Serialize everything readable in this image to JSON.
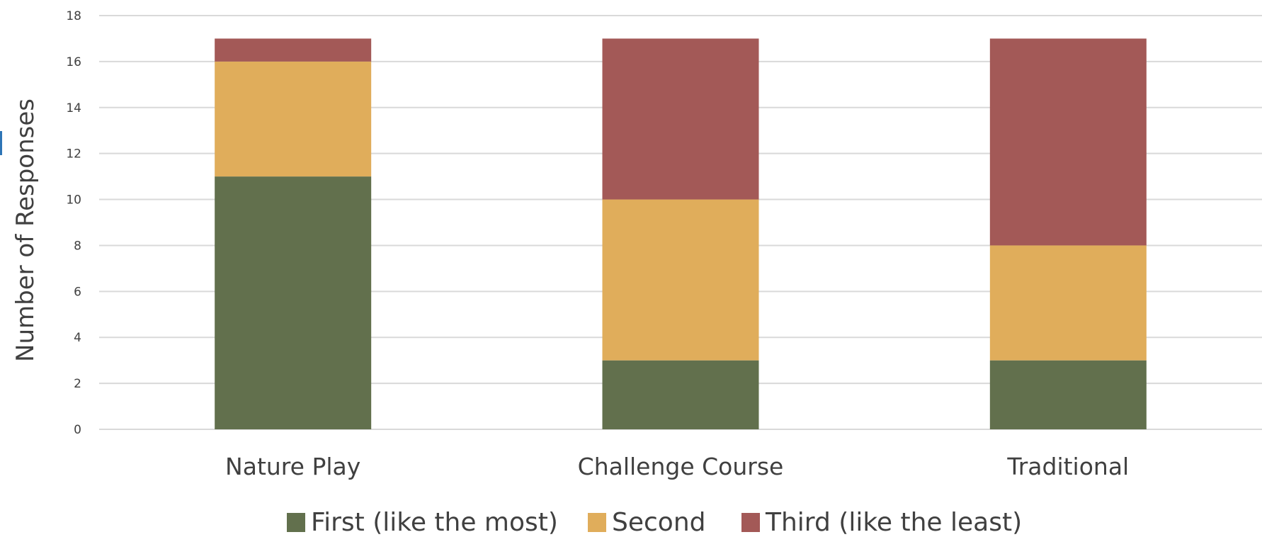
{
  "chart_data": {
    "type": "bar",
    "stacked": true,
    "title": "",
    "xlabel": "",
    "ylabel": "Number of Responses",
    "ylim": [
      0,
      18
    ],
    "yticks": [
      0,
      2,
      4,
      6,
      8,
      10,
      12,
      14,
      16,
      18
    ],
    "grid": true,
    "legend_position": "bottom",
    "categories": [
      "Nature Play",
      "Challenge Course",
      "Traditional"
    ],
    "series": [
      {
        "name": "First (like the most)",
        "color": "#62704d",
        "values": [
          11,
          3,
          3
        ]
      },
      {
        "name": "Second",
        "color": "#e0ad5b",
        "values": [
          5,
          7,
          5
        ]
      },
      {
        "name": "Third (like the least)",
        "color": "#a35957",
        "values": [
          1,
          7,
          9
        ]
      }
    ]
  }
}
